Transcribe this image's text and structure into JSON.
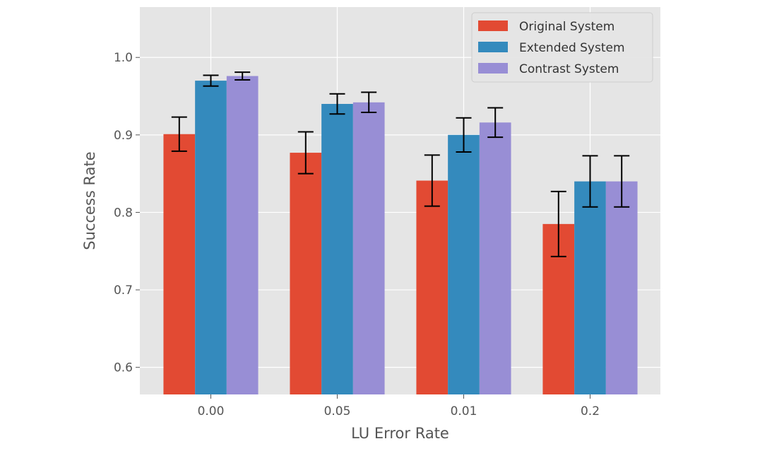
{
  "chart_data": {
    "type": "bar",
    "title": "",
    "xlabel": "LU Error Rate",
    "ylabel": "Success Rate",
    "categories": [
      "0.00",
      "0.05",
      "0.01",
      "0.2"
    ],
    "ylim": [
      0.565,
      1.065
    ],
    "yticks": [
      0.6,
      0.7,
      0.8,
      0.9,
      1.0
    ],
    "ytick_labels": [
      "0.6",
      "0.7",
      "0.8",
      "0.9",
      "1.0"
    ],
    "grid": true,
    "legend_position": "top-right",
    "series": [
      {
        "name": "Original System",
        "color": "#E24A33",
        "values": [
          0.901,
          0.877,
          0.841,
          0.785
        ],
        "errors": [
          0.022,
          0.027,
          0.033,
          0.042
        ]
      },
      {
        "name": "Extended System",
        "color": "#348ABD",
        "values": [
          0.97,
          0.94,
          0.9,
          0.84
        ],
        "errors": [
          0.007,
          0.013,
          0.022,
          0.033
        ]
      },
      {
        "name": "Contrast System",
        "color": "#988ED5",
        "values": [
          0.976,
          0.942,
          0.916,
          0.84
        ],
        "errors": [
          0.005,
          0.013,
          0.019,
          0.033
        ]
      }
    ]
  }
}
